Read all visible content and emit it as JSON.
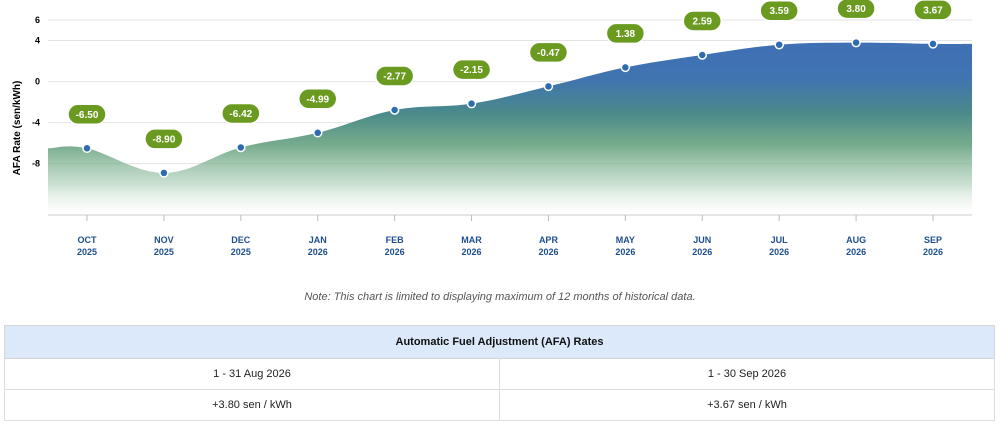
{
  "chart_data": {
    "type": "area",
    "ylabel": "AFA Rate (sen/kWh)",
    "ylim": [
      -13,
      6
    ],
    "yticks": [
      6,
      4,
      0,
      -4,
      -8
    ],
    "grid": true,
    "categories": [
      [
        "OCT",
        "2025"
      ],
      [
        "NOV",
        "2025"
      ],
      [
        "DEC",
        "2025"
      ],
      [
        "JAN",
        "2026"
      ],
      [
        "FEB",
        "2026"
      ],
      [
        "MAR",
        "2026"
      ],
      [
        "APR",
        "2026"
      ],
      [
        "MAY",
        "2026"
      ],
      [
        "JUN",
        "2026"
      ],
      [
        "JUL",
        "2026"
      ],
      [
        "AUG",
        "2026"
      ],
      [
        "SEP",
        "2026"
      ]
    ],
    "values": [
      -6.5,
      -8.9,
      -6.42,
      -4.99,
      -2.77,
      -2.15,
      -0.47,
      1.38,
      2.59,
      3.59,
      3.8,
      3.67
    ],
    "data_labels": [
      "-6.50",
      "-8.90",
      "-6.42",
      "-4.99",
      "-2.77",
      "-2.15",
      "-0.47",
      "1.38",
      "2.59",
      "3.59",
      "3.80",
      "3.67"
    ],
    "colors": {
      "positive_fill": "#3f6fb5",
      "negative_fill": "#2e8b57",
      "marker": "#2f6bb0",
      "label_bg": "#6a9a1f"
    }
  },
  "note": "Note: This chart is limited to displaying maximum of 12 months of historical data.",
  "table": {
    "title": "Automatic Fuel Adjustment (AFA) Rates",
    "col1_period": "1 - 31 Aug 2026",
    "col2_period": "1 - 30 Sep 2026",
    "col1_rate": "+3.80 sen / kWh",
    "col2_rate": "+3.67 sen / kWh"
  }
}
